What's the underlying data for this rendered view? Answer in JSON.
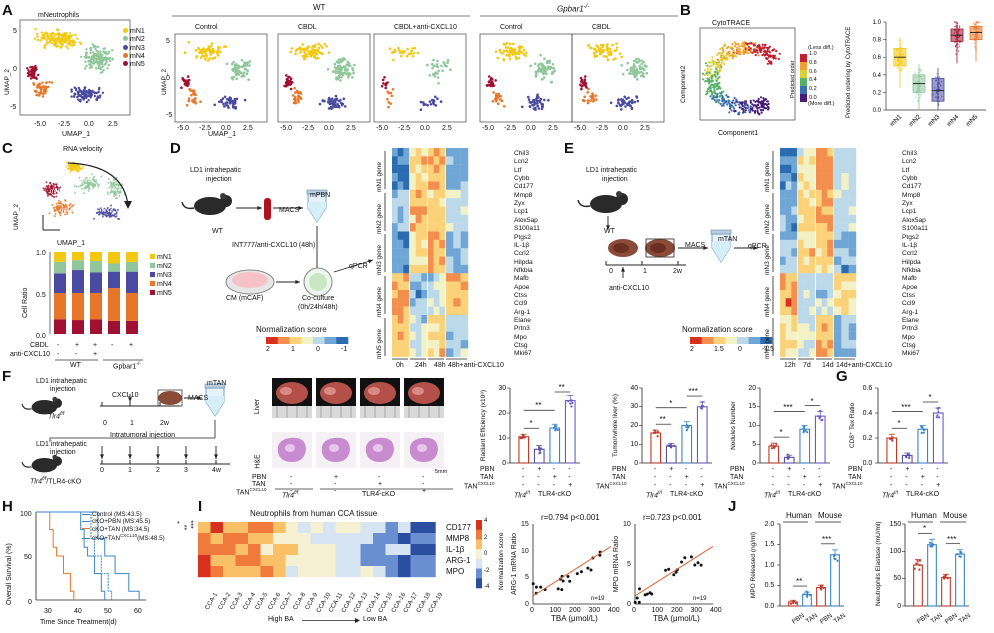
{
  "panels": [
    "A",
    "B",
    "C",
    "D",
    "E",
    "F",
    "G",
    "H",
    "I",
    "J"
  ],
  "A": {
    "title_left": "mNeutrophils",
    "legend": [
      "mN1",
      "mN2",
      "mN3",
      "mN4",
      "mN5"
    ],
    "colors": [
      "#f2c811",
      "#8fc79a",
      "#4a4aa0",
      "#e8762a",
      "#a01030"
    ],
    "xlabel": "UMAP_1",
    "ylabel": "UMAP_2",
    "xticks": [
      "-5.0",
      "-2.5",
      "0.0",
      "2.5"
    ],
    "yticks": [
      "5",
      "0",
      "-5"
    ],
    "group_wt": "WT",
    "group_ko": "Gpbar1",
    "group_ko_sup": "-/-",
    "conditions": [
      "Control",
      "CBDL",
      "CBDL+anti-CXCL10",
      "Control",
      "CBDL"
    ]
  },
  "B": {
    "title": "CytoTRACE",
    "xlabel": "Component1",
    "ylabel": "Component2",
    "cbar_top": "(Less diff.)",
    "cbar_bottom": "(More diff.)",
    "cbar_ticks": [
      "1.0",
      "0.8",
      "0.6",
      "0.4",
      "0.2",
      "0.0"
    ],
    "cbar_label": "Predicted order",
    "box_ylabel": "Predicted ordering by CytoTRACE",
    "box_yticks": [
      "1.0",
      "0.8",
      "0.6",
      "0.4",
      "0.2",
      "0.0"
    ],
    "categories": [
      "mN1",
      "mN2",
      "mN3",
      "mN4",
      "mN5"
    ]
  },
  "C": {
    "title": "RNA velocity",
    "xlabel": "UMAP_1",
    "ylabel": "UMAP_2",
    "clusters": [
      "mN5",
      "mN1",
      "mN2",
      "mN3",
      "mN4"
    ],
    "bar_ylabel": "Cell Ratio",
    "bar_yticks": [
      "1.0",
      "0.5",
      "0.0"
    ],
    "cbdl_label": "CBDL",
    "anti_label": "anti-CXCL10",
    "cbdl_signs": [
      "-",
      "+",
      "+",
      "-",
      "+"
    ],
    "anti_signs": [
      "-",
      "-",
      "+",
      "",
      ""
    ],
    "group_wt": "WT",
    "group_ko": "Gpbar1",
    "group_ko_sup": "-/-",
    "legend": [
      "mN1",
      "mN2",
      "mN3",
      "mN4",
      "mN5"
    ]
  },
  "D": {
    "s1": "LD1 intrahepatic",
    "s2": "injection",
    "wt": "WT",
    "macs": "MACS",
    "mpbn": "mPBN",
    "treat": "INT777/anti-CXCL10 (48h)",
    "cm": "CM (mCAF)",
    "co1": "Co-culture",
    "co2": "(0h/24h/48h)",
    "qpcr": "qPCR",
    "norm_label": "Normalization score",
    "cbar_ticks": [
      "2",
      "1",
      "0",
      "-1"
    ],
    "xlabels": [
      "0h",
      "24h",
      "48h",
      "48h+anti-CXCL10"
    ],
    "row_groups": [
      "mN1 gene",
      "mN2 gene",
      "mN3 gene",
      "mN4 gene",
      "mN5 gene"
    ],
    "genes": [
      "Chil3",
      "Lcn2",
      "Ltf",
      "Cybb",
      "Cd177",
      "Mmp8",
      "Zyx",
      "Lcp1",
      "Alox5ap",
      "S100a11",
      "Ptgs2",
      "IL-1β",
      "Ccrl2",
      "Hilpda",
      "Nfkbia",
      "Mafb",
      "Apoe",
      "Ctss",
      "Ccl9",
      "Arg-1",
      "Elane",
      "Prtn3",
      "Mpo",
      "Ctsg",
      "Mki67"
    ]
  },
  "E": {
    "s1": "LD1 intrahepatic",
    "s2": "injection",
    "wt": "WT",
    "macs": "MACS",
    "mtan": "mTAN",
    "qpcr": "qPCR",
    "t0": "0",
    "t1": "1",
    "t2": "2w",
    "anti": "anti-CXCL10",
    "norm_label": "Normalization score",
    "cbar_ticks": [
      "2",
      "1.5",
      "0",
      "-1.5"
    ],
    "xlabels": [
      "12h",
      "7d",
      "14d",
      "14d+anti-CXCL10"
    ],
    "row_groups": [
      "mN1 gene",
      "mN2 gene",
      "mN3 gene",
      "mN4 gene",
      "mN5 gene"
    ],
    "genes": [
      "Chil3",
      "Lcn2",
      "Ltf",
      "Cybb",
      "Cd177",
      "Mmp8",
      "Zyx",
      "Lcp1",
      "Alox5ap",
      "S100a11",
      "Ptgs2",
      "IL-1β",
      "Ccrl2",
      "Hilpda",
      "Nfkbia",
      "Mafb",
      "Apoe",
      "Ctss",
      "Ccl9",
      "Arg-1",
      "Elane",
      "Prtn3",
      "Mpo",
      "Ctsg",
      "Mki67"
    ]
  },
  "F": {
    "s1": "LD1 intrahepatic",
    "s2": "injection",
    "tlr": "Tlr4",
    "tlr_sup": "f/f",
    "cxcl": "CXCL10",
    "macs": "MACS",
    "mtan": "mTAN",
    "t0": "0",
    "t1": "1",
    "t2": "2w",
    "intra": "Intratumoral injection",
    "tlrko": "TLR4-cKO",
    "ticks2": [
      "0",
      "1",
      "2",
      "3",
      "4w"
    ],
    "liver": "Liver",
    "he": "H&E",
    "scale": "5mm",
    "pbn": "PBN",
    "tan": "TAN",
    "tancx": "TAN",
    "tancx_sup": "CXCL10",
    "img_pbn": [
      "-",
      "+",
      "-",
      "-"
    ],
    "img_tan": [
      "-",
      "-",
      "+",
      "-"
    ],
    "img_tancx": [
      "-",
      "-",
      "-",
      "+"
    ],
    "charts": [
      {
        "ylabel": "Radiant Efficiency (x10⁸)",
        "yticks": [
          "30",
          "20",
          "10",
          "0"
        ],
        "ymax": 30,
        "values": [
          10.5,
          5.5,
          14,
          25
        ],
        "errs": [
          1,
          1.5,
          1.5,
          2
        ],
        "stars": [
          "*",
          "**",
          "**"
        ]
      },
      {
        "ylabel": "Tumor/whole liver (%)",
        "yticks": [
          "40",
          "30",
          "20",
          "10",
          "0"
        ],
        "ymax": 40,
        "values": [
          16,
          9,
          20,
          30
        ],
        "errs": [
          1.5,
          1.5,
          2,
          2.5
        ],
        "stars": [
          "**",
          "*",
          "***"
        ]
      },
      {
        "ylabel": "Nodules Number",
        "yticks": [
          "20",
          "15",
          "10",
          "5",
          "0"
        ],
        "ymax": 20,
        "values": [
          4.5,
          1.5,
          9,
          12.5
        ],
        "errs": [
          0.8,
          0.6,
          1,
          1.2
        ],
        "stars": [
          "*",
          "***",
          "*"
        ]
      }
    ],
    "signs_pbn": [
      "-",
      "+",
      "-",
      "-"
    ],
    "signs_tan": [
      "-",
      "-",
      "+",
      "-"
    ],
    "signs_tancx": [
      "-",
      "-",
      "-",
      "+"
    ]
  },
  "G": {
    "ylabel": "CD8⁺ Tex Ratio",
    "yticks": [
      "0.6",
      "0.4",
      "0.2",
      "0.0"
    ],
    "ymax": 0.6,
    "values": [
      0.2,
      0.06,
      0.27,
      0.4
    ],
    "errs": [
      0.03,
      0.02,
      0.03,
      0.04
    ],
    "stars": [
      "*",
      "***",
      "*"
    ]
  },
  "H": {
    "xlabel": "Time Since Treatment(d)",
    "ylabel": "Overall Survival (%)",
    "yticks": [
      "100",
      "50",
      "0"
    ],
    "xticks": [
      "30",
      "40",
      "50",
      "60"
    ],
    "legend": [
      "Control (MS:43.5)",
      "cKO+PBN (MS:45.5)",
      "cKO+TAN (MS:34.5)",
      "cKO+TAN"
    ],
    "legend_sup": "CXCL10",
    "legend_tail": "(MS:48.5)",
    "colors": [
      "#3a86c8",
      "#3a86c8",
      "#e8762a",
      "#3a86c8"
    ],
    "stars": [
      "*",
      "**",
      "***"
    ]
  },
  "I": {
    "title": "Neutrophils from human CCA tissue",
    "genes": [
      "CD177",
      "MMP8",
      "IL-1β",
      "ARG-1",
      "MPO"
    ],
    "samples": [
      "CCA-1",
      "CCA-2",
      "CCA-3",
      "CCA-4",
      "CCA-5",
      "CCA-6",
      "CCA-7",
      "CCA-8",
      "CCA-9",
      "CCA-10",
      "CCA-11",
      "CCA-12",
      "CCA-13",
      "CCA-14",
      "CCA-15",
      "CCA-16",
      "CCA-17",
      "CCA-18",
      "CCA-19"
    ],
    "high": "High BA",
    "low": "Low BA",
    "cbar_ticks": [
      "4",
      "2",
      "0",
      "-2",
      "-4"
    ],
    "cbar_label": "Normalization score",
    "scatter1": {
      "stat": "r=0.794 p<0.001",
      "ylabel": "ARG-1  mRNA Ratio",
      "xlabel": "TBA (μmol/L)",
      "xticks": [
        "0",
        "100",
        "200",
        "300",
        "400"
      ],
      "yticks": [
        "15",
        "10",
        "5",
        "0"
      ],
      "n": "n=19"
    },
    "scatter2": {
      "stat": "r=0.723 p<0.001",
      "ylabel": "MPO  mRNA Ratio",
      "xlabel": "TBA (μmol/L)",
      "xticks": [
        "0",
        "100",
        "200",
        "300",
        "400"
      ],
      "yticks": [
        "10",
        "5",
        "0"
      ],
      "n": "n=19"
    }
  },
  "J": {
    "chart1": {
      "ylabel": "MPO Released (ng/ml)",
      "yticks": [
        "2.0",
        "1.5",
        "1.0",
        "0.5",
        "0.0"
      ],
      "ymax": 2,
      "groups": [
        "Human",
        "Mouse"
      ],
      "x": [
        "PBN",
        "TAN",
        "PBN",
        "TAN"
      ],
      "values": [
        0.1,
        0.28,
        0.45,
        1.25
      ],
      "errs": [
        0.04,
        0.06,
        0.06,
        0.12
      ],
      "stars": [
        "**",
        "***"
      ]
    },
    "chart2": {
      "ylabel": "Neutrophils Elastase (mU/ml)",
      "yticks": [
        "150",
        "100",
        "50",
        "0"
      ],
      "ymax": 150,
      "groups": [
        "Human",
        "Mouse"
      ],
      "x": [
        "PBN",
        "TAN",
        "PBN",
        "TAN"
      ],
      "values": [
        75,
        112,
        52,
        95
      ],
      "errs": [
        10,
        10,
        6,
        8
      ],
      "stars": [
        "*",
        "***"
      ]
    }
  }
}
